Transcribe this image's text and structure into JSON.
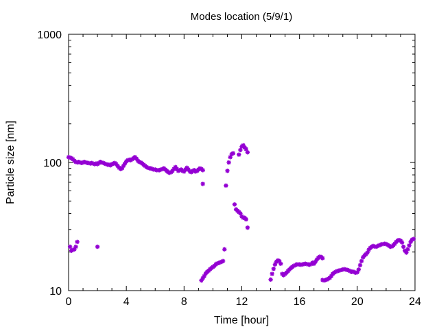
{
  "chart_data": {
    "type": "scatter",
    "title": "Modes location (5/9/1)",
    "xlabel": "Time [hour]",
    "ylabel": "Particle size [nm]",
    "xlim": [
      0,
      24
    ],
    "ylim": [
      10,
      1000
    ],
    "yscale": "log",
    "grid": false,
    "x_ticks": [
      0,
      4,
      8,
      12,
      16,
      20,
      24
    ],
    "x_tick_labels": [
      "0",
      "4",
      "8",
      "12",
      "16",
      "20",
      "24"
    ],
    "y_ticks": [
      10,
      100,
      1000
    ],
    "y_tick_labels": [
      "10",
      "100",
      "1000"
    ],
    "marker_color": "#9400D3",
    "series": [
      {
        "points": [
          [
            0.0,
            110
          ],
          [
            0.1,
            109
          ],
          [
            0.2,
            108
          ],
          [
            0.3,
            106
          ],
          [
            0.4,
            103
          ],
          [
            0.5,
            101
          ],
          [
            0.6,
            100
          ],
          [
            0.7,
            101
          ],
          [
            0.8,
            100
          ],
          [
            0.9,
            99
          ],
          [
            1.0,
            100
          ],
          [
            1.1,
            101
          ],
          [
            1.2,
            100
          ],
          [
            1.3,
            99
          ],
          [
            1.4,
            99
          ],
          [
            1.5,
            98
          ],
          [
            1.6,
            99
          ],
          [
            1.7,
            98
          ],
          [
            1.8,
            97
          ],
          [
            1.9,
            98
          ],
          [
            2.0,
            97
          ],
          [
            2.1,
            99
          ],
          [
            2.2,
            101
          ],
          [
            2.3,
            100
          ],
          [
            2.4,
            99
          ],
          [
            2.5,
            98
          ],
          [
            2.6,
            97
          ],
          [
            2.7,
            96
          ],
          [
            2.8,
            96
          ],
          [
            2.9,
            95
          ],
          [
            3.0,
            97
          ],
          [
            3.1,
            98
          ],
          [
            3.2,
            99
          ],
          [
            3.3,
            97
          ],
          [
            3.4,
            94
          ],
          [
            3.5,
            91
          ],
          [
            3.6,
            89
          ],
          [
            3.7,
            90
          ],
          [
            3.8,
            94
          ],
          [
            3.9,
            98
          ],
          [
            4.0,
            102
          ],
          [
            4.1,
            104
          ],
          [
            4.2,
            105
          ],
          [
            4.3,
            104
          ],
          [
            4.4,
            106
          ],
          [
            4.5,
            108
          ],
          [
            4.6,
            110
          ],
          [
            4.7,
            107
          ],
          [
            4.8,
            103
          ],
          [
            4.9,
            101
          ],
          [
            5.0,
            100
          ],
          [
            5.1,
            98
          ],
          [
            5.2,
            96
          ],
          [
            5.3,
            94
          ],
          [
            5.4,
            92
          ],
          [
            5.5,
            91
          ],
          [
            5.6,
            90
          ],
          [
            5.7,
            90
          ],
          [
            5.8,
            89
          ],
          [
            5.9,
            88
          ],
          [
            6.0,
            88
          ],
          [
            6.1,
            87
          ],
          [
            6.2,
            87
          ],
          [
            6.3,
            87
          ],
          [
            6.4,
            88
          ],
          [
            6.5,
            89
          ],
          [
            6.6,
            90
          ],
          [
            6.7,
            88
          ],
          [
            6.8,
            86
          ],
          [
            6.9,
            84
          ],
          [
            7.0,
            83
          ],
          [
            7.1,
            84
          ],
          [
            7.2,
            86
          ],
          [
            7.3,
            89
          ],
          [
            7.4,
            92
          ],
          [
            7.5,
            89
          ],
          [
            7.6,
            86
          ],
          [
            7.7,
            87
          ],
          [
            7.8,
            88
          ],
          [
            7.9,
            86
          ],
          [
            8.0,
            85
          ],
          [
            8.1,
            88
          ],
          [
            8.2,
            91
          ],
          [
            8.3,
            88
          ],
          [
            8.4,
            85
          ],
          [
            8.5,
            84
          ],
          [
            8.6,
            86
          ],
          [
            8.7,
            87
          ],
          [
            8.8,
            85
          ],
          [
            8.9,
            86
          ],
          [
            9.0,
            88
          ],
          [
            9.1,
            90
          ],
          [
            9.2,
            89
          ],
          [
            9.3,
            87
          ],
          [
            9.3,
            68
          ],
          [
            9.2,
            12
          ],
          [
            9.3,
            12.5
          ],
          [
            9.4,
            13
          ],
          [
            9.5,
            13.6
          ],
          [
            9.6,
            14
          ],
          [
            9.7,
            14.3
          ],
          [
            9.8,
            14.7
          ],
          [
            9.9,
            15
          ],
          [
            10.0,
            15.3
          ],
          [
            10.1,
            15.6
          ],
          [
            10.2,
            16
          ],
          [
            10.3,
            16.3
          ],
          [
            10.4,
            16.4
          ],
          [
            10.5,
            16.6
          ],
          [
            10.6,
            16.8
          ],
          [
            10.7,
            17
          ],
          [
            10.8,
            21
          ],
          [
            10.9,
            66
          ],
          [
            11.0,
            86
          ],
          [
            11.1,
            100
          ],
          [
            11.2,
            110
          ],
          [
            11.3,
            116
          ],
          [
            11.4,
            118
          ],
          [
            11.5,
            47
          ],
          [
            11.6,
            43
          ],
          [
            11.7,
            42
          ],
          [
            11.8,
            41
          ],
          [
            11.9,
            40
          ],
          [
            12.0,
            38
          ],
          [
            12.1,
            37
          ],
          [
            12.2,
            37
          ],
          [
            12.3,
            36
          ],
          [
            12.4,
            31
          ],
          [
            11.8,
            115
          ],
          [
            11.9,
            125
          ],
          [
            12.0,
            133
          ],
          [
            12.1,
            136
          ],
          [
            12.2,
            131
          ],
          [
            12.3,
            127
          ],
          [
            12.4,
            120
          ],
          [
            0.1,
            22
          ],
          [
            0.2,
            20.5
          ],
          [
            0.3,
            20.8
          ],
          [
            0.4,
            21
          ],
          [
            0.5,
            22
          ],
          [
            0.6,
            24
          ],
          [
            2.0,
            22
          ],
          [
            14.0,
            12.2
          ],
          [
            14.1,
            13.5
          ],
          [
            14.2,
            14.8
          ],
          [
            14.3,
            16
          ],
          [
            14.4,
            16.8
          ],
          [
            14.5,
            17.2
          ],
          [
            14.6,
            17
          ],
          [
            14.7,
            16.2
          ],
          [
            14.8,
            13.5
          ],
          [
            14.9,
            13.2
          ],
          [
            15.0,
            13.5
          ],
          [
            15.1,
            13.8
          ],
          [
            15.2,
            14.2
          ],
          [
            15.3,
            14.6
          ],
          [
            15.4,
            15
          ],
          [
            15.5,
            15.3
          ],
          [
            15.6,
            15.6
          ],
          [
            15.7,
            15.8
          ],
          [
            15.8,
            16
          ],
          [
            15.9,
            16
          ],
          [
            16.0,
            16
          ],
          [
            16.1,
            15.9
          ],
          [
            16.2,
            16
          ],
          [
            16.3,
            16.1
          ],
          [
            16.4,
            16.2
          ],
          [
            16.5,
            16.1
          ],
          [
            16.6,
            16
          ],
          [
            16.7,
            15.9
          ],
          [
            16.8,
            16.1
          ],
          [
            16.9,
            16.5
          ],
          [
            17.0,
            16.2
          ],
          [
            17.1,
            16.8
          ],
          [
            17.2,
            17.5
          ],
          [
            17.3,
            18
          ],
          [
            17.4,
            18.4
          ],
          [
            17.5,
            18.3
          ],
          [
            17.6,
            17.9
          ],
          [
            17.6,
            12.1
          ],
          [
            17.7,
            12
          ],
          [
            17.8,
            12.1
          ],
          [
            17.9,
            12.2
          ],
          [
            18.0,
            12.4
          ],
          [
            18.1,
            12.6
          ],
          [
            18.2,
            13
          ],
          [
            18.3,
            13.5
          ],
          [
            18.4,
            13.8
          ],
          [
            18.5,
            14
          ],
          [
            18.6,
            14.2
          ],
          [
            18.7,
            14.3
          ],
          [
            18.8,
            14.4
          ],
          [
            18.9,
            14.5
          ],
          [
            19.0,
            14.6
          ],
          [
            19.1,
            14.7
          ],
          [
            19.2,
            14.6
          ],
          [
            19.3,
            14.5
          ],
          [
            19.4,
            14.4
          ],
          [
            19.5,
            14.2
          ],
          [
            19.6,
            14
          ],
          [
            19.7,
            14.1
          ],
          [
            19.8,
            13.9
          ],
          [
            19.9,
            13.8
          ],
          [
            20.0,
            13.9
          ],
          [
            20.1,
            14.6
          ],
          [
            20.2,
            15.8
          ],
          [
            20.3,
            17
          ],
          [
            20.4,
            18.2
          ],
          [
            20.5,
            18.8
          ],
          [
            20.6,
            19.2
          ],
          [
            20.7,
            19.8
          ],
          [
            20.8,
            20.8
          ],
          [
            20.9,
            21.5
          ],
          [
            21.0,
            22
          ],
          [
            21.1,
            22.3
          ],
          [
            21.2,
            22.1
          ],
          [
            21.3,
            22
          ],
          [
            21.4,
            22.2
          ],
          [
            21.5,
            22.5
          ],
          [
            21.6,
            22.8
          ],
          [
            21.7,
            23
          ],
          [
            21.8,
            23.1
          ],
          [
            21.9,
            23.2
          ],
          [
            22.0,
            23.1
          ],
          [
            22.1,
            22.8
          ],
          [
            22.2,
            22.4
          ],
          [
            22.3,
            22
          ],
          [
            22.4,
            22.1
          ],
          [
            22.5,
            22.6
          ],
          [
            22.6,
            23.2
          ],
          [
            22.7,
            24
          ],
          [
            22.8,
            24.6
          ],
          [
            22.9,
            24.8
          ],
          [
            23.0,
            24.5
          ],
          [
            23.1,
            23.8
          ],
          [
            23.2,
            22
          ],
          [
            23.3,
            20.5
          ],
          [
            23.4,
            19.8
          ],
          [
            23.5,
            21
          ],
          [
            23.6,
            22.5
          ],
          [
            23.7,
            24
          ],
          [
            23.8,
            25
          ],
          [
            23.9,
            25.3
          ]
        ]
      }
    ]
  }
}
